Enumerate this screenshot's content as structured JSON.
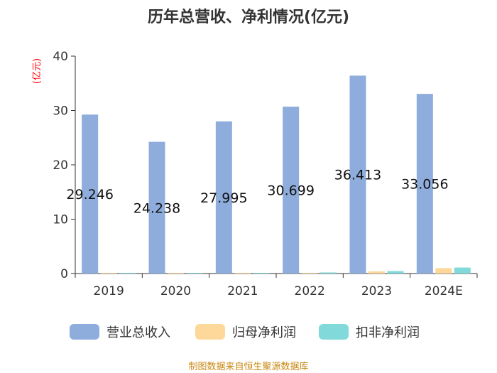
{
  "chart_data": {
    "type": "bar",
    "title": "历年总营收、净利情况(亿元)",
    "ylabel": "(亿元)",
    "ylim": [
      0,
      40
    ],
    "yticks": [
      "0",
      "10",
      "20",
      "30",
      "40"
    ],
    "categories": [
      "2019",
      "2020",
      "2021",
      "2022",
      "2023",
      "2024E"
    ],
    "series": [
      {
        "name": "营业总收入",
        "color": "#8eaddc",
        "values": [
          29.246,
          24.238,
          27.995,
          30.699,
          36.413,
          33.056
        ],
        "labels": [
          "29.246",
          "24.238",
          "27.995",
          "30.699",
          "36.413",
          "33.056"
        ]
      },
      {
        "name": "归母净利润",
        "color": "#fdd89a",
        "values": [
          0.02,
          0.03,
          0.05,
          0.1,
          0.4,
          1.0
        ]
      },
      {
        "name": "扣非净利润",
        "color": "#82d9d9",
        "values": [
          0.1,
          0.1,
          0.12,
          0.2,
          0.45,
          1.1
        ]
      }
    ],
    "legend_position": "bottom",
    "grid": false
  },
  "footer": {
    "source": "制图数据来自恒生聚源数据库"
  }
}
